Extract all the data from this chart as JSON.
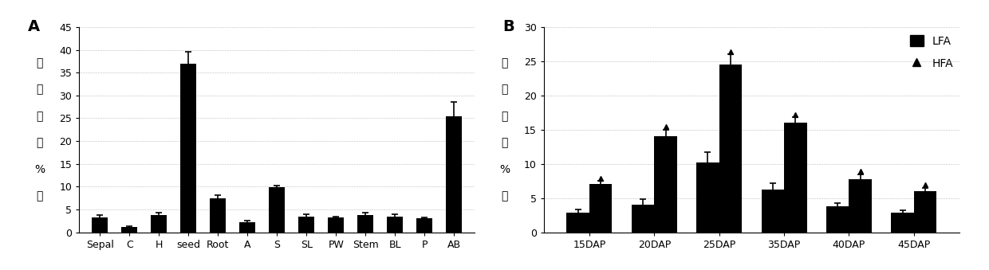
{
  "panel_A": {
    "categories": [
      "Sepal",
      "C",
      "H",
      "seed",
      "Root",
      "A",
      "S",
      "SL",
      "PW",
      "Stem",
      "BL",
      "P",
      "AB"
    ],
    "values": [
      3.2,
      1.2,
      3.8,
      37.0,
      7.5,
      2.2,
      9.8,
      3.5,
      3.2,
      3.8,
      3.5,
      3.0,
      25.5
    ],
    "errors": [
      0.6,
      0.2,
      0.5,
      2.5,
      0.6,
      0.3,
      0.5,
      0.4,
      0.3,
      0.4,
      0.4,
      0.3,
      3.0
    ],
    "ylim": [
      0,
      45
    ],
    "yticks": [
      0,
      5,
      10,
      15,
      20,
      25,
      30,
      35,
      40,
      45
    ],
    "ylabel_chars": [
      "相",
      "对",
      "値",
      "（",
      "%",
      "）"
    ],
    "label": "A"
  },
  "panel_B": {
    "categories": [
      "15DAP",
      "20DAP",
      "25DAP",
      "35DAP",
      "40DAP",
      "45DAP"
    ],
    "lfa_values": [
      2.8,
      4.0,
      10.2,
      6.2,
      3.8,
      2.8
    ],
    "lfa_errors": [
      0.5,
      0.8,
      1.5,
      1.0,
      0.5,
      0.4
    ],
    "hfa_values": [
      7.0,
      14.0,
      24.5,
      16.0,
      7.8,
      6.0
    ],
    "hfa_errors": [
      0.5,
      1.0,
      1.5,
      0.8,
      0.7,
      0.5
    ],
    "ylim": [
      0,
      30
    ],
    "yticks": [
      0,
      5,
      10,
      15,
      20,
      25,
      30
    ],
    "ylabel_chars": [
      "相",
      "对",
      "値",
      "（",
      "%",
      "）"
    ],
    "label": "B",
    "legend_lfa": "LFA",
    "legend_hfa": "HFA"
  },
  "bar_color": "#000000",
  "bg_color": "#ffffff",
  "font_size": 9,
  "label_font_size": 14
}
